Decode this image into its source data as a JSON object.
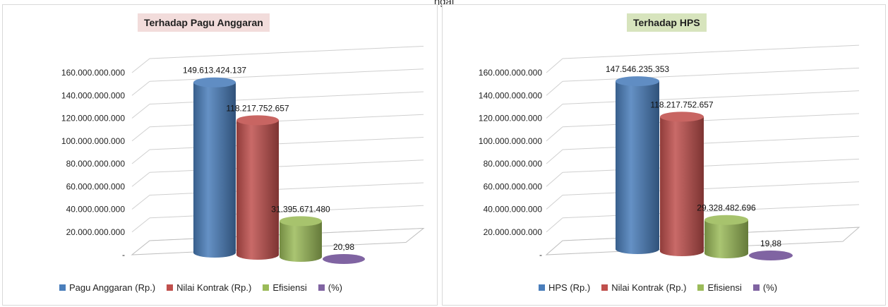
{
  "page": {
    "caption": "ngaj"
  },
  "chart_data": [
    {
      "type": "bar",
      "title": "Terhadap Pagu Anggaran",
      "categories": [
        "Pagu Anggaran (Rp.)",
        "Nilai Kontrak (Rp.)",
        "Efisiensi",
        "(%)"
      ],
      "values": [
        149613424137,
        118217752657,
        31395671480,
        20.98
      ],
      "value_labels": [
        "149.613.424.137",
        "118.217.752.657",
        "31.395.671.480",
        "20,98"
      ],
      "colors": [
        "#4a7ebb",
        "#c0504d",
        "#9bbb59",
        "#8064a2"
      ],
      "ylim": [
        0,
        160000000000
      ],
      "yticks": [
        "-",
        "20.000.000.000",
        "40.000.000.000",
        "60.000.000.000",
        "80.000.000.000",
        "100.000.000.000",
        "120.000.000.000",
        "140.000.000.000",
        "160.000.000.000"
      ],
      "xlabel": "",
      "ylabel": "",
      "grid": true,
      "legend_position": "bottom",
      "style": "3d-cylinder"
    },
    {
      "type": "bar",
      "title": "Terhadap HPS",
      "categories": [
        "HPS (Rp.)",
        "Nilai Kontrak (Rp.)",
        "Efisiensi",
        "(%)"
      ],
      "values": [
        147546235353,
        118217752657,
        29328482696,
        19.88
      ],
      "value_labels": [
        "147.546.235.353",
        "118.217.752.657",
        "29.328.482.696",
        "19,88"
      ],
      "colors": [
        "#4a7ebb",
        "#c0504d",
        "#9bbb59",
        "#8064a2"
      ],
      "ylim": [
        0,
        160000000000
      ],
      "yticks": [
        "-",
        "20.000.000.000",
        "40.000.000.000",
        "60.000.000.000",
        "80.000.000.000",
        "100.000.000.000",
        "120.000.000.000",
        "140.000.000.000",
        "160.000.000.000"
      ],
      "xlabel": "",
      "ylabel": "",
      "grid": true,
      "legend_position": "bottom",
      "style": "3d-cylinder"
    }
  ]
}
